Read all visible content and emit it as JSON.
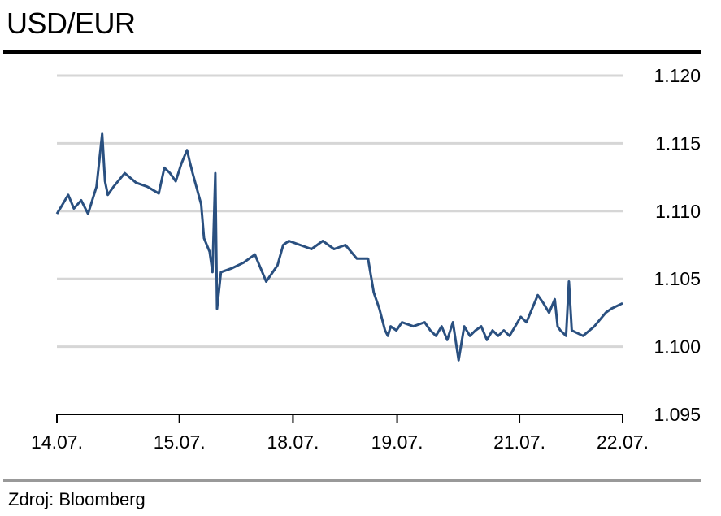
{
  "title": "USD/EUR",
  "source": "Zdroj: Bloomberg",
  "colors": {
    "line": "#2a5080",
    "grid": "#d6d6d6",
    "axis": "#000000",
    "rule": "#000000"
  },
  "chart_data": {
    "type": "line",
    "title": "USD/EUR",
    "xlabel": "",
    "ylabel": "",
    "ylim": [
      1.095,
      1.12
    ],
    "yticks": [
      1.095,
      1.1,
      1.105,
      1.11,
      1.115,
      1.12
    ],
    "ytick_labels": [
      "1.095",
      "1.100",
      "1.105",
      "1.110",
      "1.115",
      "1.120"
    ],
    "y_axis_position": "right",
    "grid": true,
    "xlim": [
      0,
      1
    ],
    "xticks": [
      {
        "label": "14.07.",
        "pos": 0.0
      },
      {
        "label": "15.07.",
        "pos": 0.2165
      },
      {
        "label": "18.07.",
        "pos": 0.4173
      },
      {
        "label": "19.07.",
        "pos": 0.6014
      },
      {
        "label": "21.07.",
        "pos": 0.8176
      },
      {
        "label": "22.07.",
        "pos": 1.0
      }
    ],
    "series": [
      {
        "x": [
          0.0,
          0.01,
          0.02,
          0.03,
          0.043,
          0.055,
          0.07,
          0.08,
          0.085,
          0.09,
          0.1,
          0.12,
          0.14,
          0.16,
          0.18,
          0.19,
          0.2,
          0.21,
          0.22,
          0.23,
          0.235,
          0.24,
          0.255,
          0.26,
          0.27,
          0.275,
          0.28,
          0.283,
          0.29,
          0.31,
          0.33,
          0.35,
          0.37,
          0.39,
          0.4,
          0.41,
          0.43,
          0.45,
          0.47,
          0.49,
          0.51,
          0.53,
          0.55,
          0.56,
          0.57,
          0.575,
          0.58,
          0.585,
          0.59,
          0.6,
          0.61,
          0.63,
          0.65,
          0.66,
          0.67,
          0.68,
          0.69,
          0.7,
          0.71,
          0.72,
          0.73,
          0.74,
          0.75,
          0.76,
          0.77,
          0.78,
          0.79,
          0.8,
          0.81,
          0.82,
          0.83,
          0.84,
          0.85,
          0.86,
          0.87,
          0.88,
          0.885,
          0.89,
          0.9,
          0.905,
          0.91,
          0.93,
          0.95,
          0.97,
          0.98,
          1.0
        ],
        "values": [
          1.1098,
          1.1105,
          1.1112,
          1.1102,
          1.1108,
          1.1098,
          1.1118,
          1.1157,
          1.1122,
          1.1112,
          1.1118,
          1.1128,
          1.1121,
          1.1118,
          1.1113,
          1.1132,
          1.1128,
          1.1122,
          1.1135,
          1.1145,
          1.1136,
          1.1128,
          1.1105,
          1.108,
          1.107,
          1.1055,
          1.1128,
          1.1028,
          1.1055,
          1.1058,
          1.1062,
          1.1068,
          1.1048,
          1.106,
          1.1075,
          1.1078,
          1.1075,
          1.1072,
          1.1078,
          1.1072,
          1.1075,
          1.1065,
          1.1065,
          1.104,
          1.1028,
          1.102,
          1.1012,
          1.1008,
          1.1015,
          1.1012,
          1.1018,
          1.1015,
          1.1018,
          1.1012,
          1.1008,
          1.1015,
          1.1005,
          1.1018,
          1.099,
          1.1015,
          1.1008,
          1.1012,
          1.1015,
          1.1005,
          1.1012,
          1.1008,
          1.1012,
          1.1008,
          1.1015,
          1.1022,
          1.1018,
          1.1028,
          1.1038,
          1.1032,
          1.1025,
          1.1035,
          1.1015,
          1.1012,
          1.1008,
          1.1048,
          1.1012,
          1.1008,
          1.1015,
          1.1025,
          1.1028,
          1.1032
        ]
      }
    ]
  }
}
